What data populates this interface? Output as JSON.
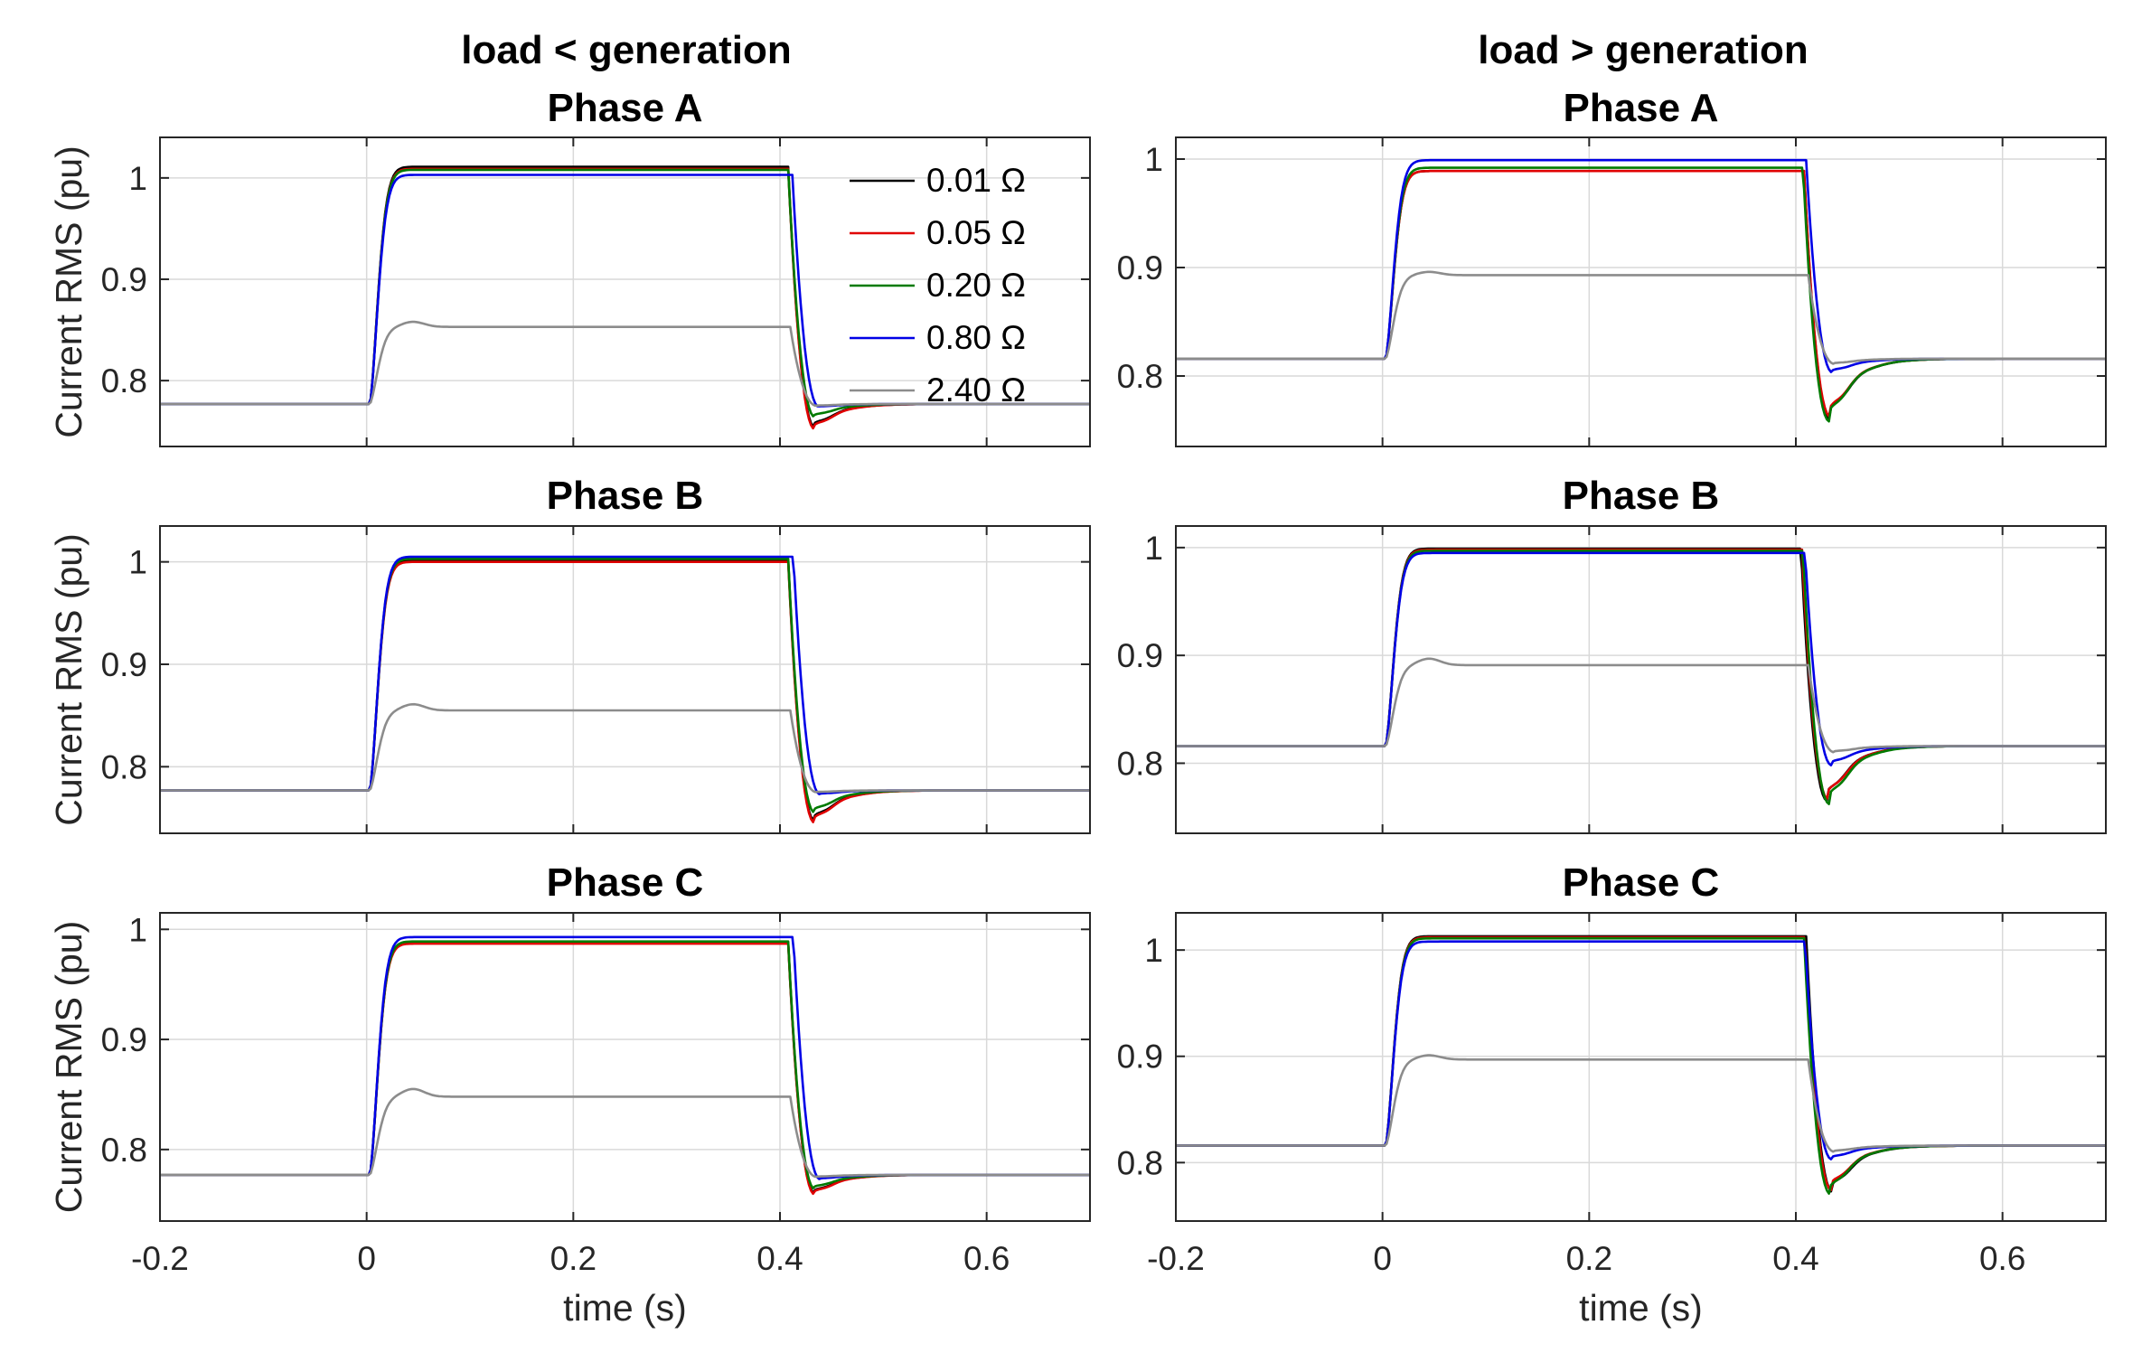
{
  "figure": {
    "columns": [
      {
        "title": "load < generation"
      },
      {
        "title": "load > generation"
      }
    ],
    "legend": [
      {
        "label": "0.01 Ω",
        "color": "#000000"
      },
      {
        "label": "0.05 Ω",
        "color": "#e00000"
      },
      {
        "label": "0.20 Ω",
        "color": "#007a00"
      },
      {
        "label": "0.80 Ω",
        "color": "#0000e6"
      },
      {
        "label": "2.40 Ω",
        "color": "#8c8c8c"
      }
    ]
  },
  "chart_data": [
    {
      "type": "line",
      "title": "Phase A",
      "column": "load < generation",
      "xlabel": "",
      "ylabel": "Current RMS (pu)",
      "xlim": [
        -0.2,
        0.7
      ],
      "ylim": [
        0.735,
        1.04
      ],
      "xticks": [
        -0.2,
        0,
        0.2,
        0.4,
        0.6
      ],
      "xtick_labels": [],
      "yticks": [
        0.8,
        0.9,
        1
      ],
      "ytick_labels": [
        "0.8",
        "0.9",
        "1"
      ],
      "grid": true,
      "legend_position": "top-right",
      "series": [
        {
          "name": "0.01 Ω",
          "pre": 0.777,
          "plateau": 1.011,
          "overshoot": 0.0,
          "dip": 0.754,
          "fault_end": 0.408
        },
        {
          "name": "0.05 Ω",
          "pre": 0.777,
          "plateau": 1.009,
          "overshoot": 0.0,
          "dip": 0.752,
          "fault_end": 0.408
        },
        {
          "name": "0.20 Ω",
          "pre": 0.777,
          "plateau": 1.008,
          "overshoot": 0.0,
          "dip": 0.764,
          "fault_end": 0.408
        },
        {
          "name": "0.80 Ω",
          "pre": 0.777,
          "plateau": 1.003,
          "overshoot": 0.0,
          "dip": 0.774,
          "fault_end": 0.412
        },
        {
          "name": "2.40 Ω",
          "pre": 0.777,
          "plateau": 0.853,
          "overshoot": 0.005,
          "dip": 0.775,
          "fault_end": 0.41
        }
      ]
    },
    {
      "type": "line",
      "title": "Phase A",
      "column": "load > generation",
      "xlabel": "",
      "ylabel": "",
      "xlim": [
        -0.2,
        0.7
      ],
      "ylim": [
        0.735,
        1.02
      ],
      "xticks": [
        -0.2,
        0,
        0.2,
        0.4,
        0.6
      ],
      "xtick_labels": [],
      "yticks": [
        0.8,
        0.9,
        1
      ],
      "ytick_labels": [
        "0.8",
        "0.9",
        "1"
      ],
      "grid": true,
      "series": [
        {
          "name": "0.01 Ω",
          "pre": 0.816,
          "plateau": 0.989,
          "overshoot": 0.0,
          "dip": 0.76,
          "fault_end": 0.408
        },
        {
          "name": "0.05 Ω",
          "pre": 0.816,
          "plateau": 0.989,
          "overshoot": 0.0,
          "dip": 0.762,
          "fault_end": 0.408
        },
        {
          "name": "0.20 Ω",
          "pre": 0.816,
          "plateau": 0.992,
          "overshoot": 0.0,
          "dip": 0.758,
          "fault_end": 0.407
        },
        {
          "name": "0.80 Ω",
          "pre": 0.816,
          "plateau": 0.999,
          "overshoot": 0.0,
          "dip": 0.803,
          "fault_end": 0.41
        },
        {
          "name": "2.40 Ω",
          "pre": 0.816,
          "plateau": 0.893,
          "overshoot": 0.003,
          "dip": 0.811,
          "fault_end": 0.412
        }
      ]
    },
    {
      "type": "line",
      "title": "Phase B",
      "column": "load < generation",
      "xlabel": "",
      "ylabel": "Current RMS (pu)",
      "xlim": [
        -0.2,
        0.7
      ],
      "ylim": [
        0.735,
        1.035
      ],
      "xticks": [
        -0.2,
        0,
        0.2,
        0.4,
        0.6
      ],
      "xtick_labels": [],
      "yticks": [
        0.8,
        0.9,
        1
      ],
      "ytick_labels": [
        "0.8",
        "0.9",
        "1"
      ],
      "grid": true,
      "series": [
        {
          "name": "0.01 Ω",
          "pre": 0.777,
          "plateau": 1.002,
          "overshoot": 0.0,
          "dip": 0.747,
          "fault_end": 0.408
        },
        {
          "name": "0.05 Ω",
          "pre": 0.777,
          "plateau": 1.0,
          "overshoot": 0.0,
          "dip": 0.745,
          "fault_end": 0.408
        },
        {
          "name": "0.20 Ω",
          "pre": 0.777,
          "plateau": 1.003,
          "overshoot": 0.0,
          "dip": 0.755,
          "fault_end": 0.408
        },
        {
          "name": "0.80 Ω",
          "pre": 0.777,
          "plateau": 1.005,
          "overshoot": 0.0,
          "dip": 0.773,
          "fault_end": 0.413
        },
        {
          "name": "2.40 Ω",
          "pre": 0.777,
          "plateau": 0.855,
          "overshoot": 0.006,
          "dip": 0.775,
          "fault_end": 0.41
        }
      ]
    },
    {
      "type": "line",
      "title": "Phase B",
      "column": "load > generation",
      "xlabel": "",
      "ylabel": "",
      "xlim": [
        -0.2,
        0.7
      ],
      "ylim": [
        0.735,
        1.02
      ],
      "xticks": [
        -0.2,
        0,
        0.2,
        0.4,
        0.6
      ],
      "xtick_labels": [],
      "yticks": [
        0.8,
        0.9,
        1
      ],
      "ytick_labels": [
        "0.8",
        "0.9",
        "1"
      ],
      "grid": true,
      "series": [
        {
          "name": "0.01 Ω",
          "pre": 0.816,
          "plateau": 0.999,
          "overshoot": 0.0,
          "dip": 0.765,
          "fault_end": 0.405
        },
        {
          "name": "0.05 Ω",
          "pre": 0.816,
          "plateau": 0.998,
          "overshoot": 0.0,
          "dip": 0.766,
          "fault_end": 0.406
        },
        {
          "name": "0.20 Ω",
          "pre": 0.816,
          "plateau": 0.997,
          "overshoot": 0.0,
          "dip": 0.762,
          "fault_end": 0.407
        },
        {
          "name": "0.80 Ω",
          "pre": 0.816,
          "plateau": 0.995,
          "overshoot": 0.0,
          "dip": 0.798,
          "fault_end": 0.409
        },
        {
          "name": "2.40 Ω",
          "pre": 0.816,
          "plateau": 0.891,
          "overshoot": 0.006,
          "dip": 0.81,
          "fault_end": 0.412
        }
      ]
    },
    {
      "type": "line",
      "title": "Phase C",
      "column": "load < generation",
      "xlabel": "time (s)",
      "ylabel": "Current RMS (pu)",
      "xlim": [
        -0.2,
        0.7
      ],
      "ylim": [
        0.735,
        1.015
      ],
      "xticks": [
        -0.2,
        0,
        0.2,
        0.4,
        0.6
      ],
      "xtick_labels": [
        "-0.2",
        "0",
        "0.2",
        "0.4",
        "0.6"
      ],
      "yticks": [
        0.8,
        0.9,
        1
      ],
      "ytick_labels": [
        "0.8",
        "0.9",
        "1"
      ],
      "grid": true,
      "series": [
        {
          "name": "0.01 Ω",
          "pre": 0.777,
          "plateau": 0.988,
          "overshoot": 0.0,
          "dip": 0.76,
          "fault_end": 0.408
        },
        {
          "name": "0.05 Ω",
          "pre": 0.777,
          "plateau": 0.987,
          "overshoot": 0.0,
          "dip": 0.759,
          "fault_end": 0.408
        },
        {
          "name": "0.20 Ω",
          "pre": 0.777,
          "plateau": 0.989,
          "overshoot": 0.0,
          "dip": 0.764,
          "fault_end": 0.408
        },
        {
          "name": "0.80 Ω",
          "pre": 0.777,
          "plateau": 0.993,
          "overshoot": 0.0,
          "dip": 0.773,
          "fault_end": 0.413
        },
        {
          "name": "2.40 Ω",
          "pre": 0.777,
          "plateau": 0.848,
          "overshoot": 0.007,
          "dip": 0.775,
          "fault_end": 0.41
        }
      ]
    },
    {
      "type": "line",
      "title": "Phase C",
      "column": "load > generation",
      "xlabel": "time (s)",
      "ylabel": "",
      "xlim": [
        -0.2,
        0.7
      ],
      "ylim": [
        0.745,
        1.035
      ],
      "xticks": [
        -0.2,
        0,
        0.2,
        0.4,
        0.6
      ],
      "xtick_labels": [
        "-0.2",
        "0",
        "0.2",
        "0.4",
        "0.6"
      ],
      "yticks": [
        0.8,
        0.9,
        1
      ],
      "ytick_labels": [
        "0.8",
        "0.9",
        "1"
      ],
      "grid": true,
      "series": [
        {
          "name": "0.01 Ω",
          "pre": 0.816,
          "plateau": 1.013,
          "overshoot": 0.0,
          "dip": 0.772,
          "fault_end": 0.41
        },
        {
          "name": "0.05 Ω",
          "pre": 0.816,
          "plateau": 1.012,
          "overshoot": 0.0,
          "dip": 0.774,
          "fault_end": 0.409
        },
        {
          "name": "0.20 Ω",
          "pre": 0.816,
          "plateau": 1.011,
          "overshoot": 0.0,
          "dip": 0.77,
          "fault_end": 0.408
        },
        {
          "name": "0.80 Ω",
          "pre": 0.816,
          "plateau": 1.008,
          "overshoot": 0.0,
          "dip": 0.803,
          "fault_end": 0.409
        },
        {
          "name": "2.40 Ω",
          "pre": 0.816,
          "plateau": 0.897,
          "overshoot": 0.004,
          "dip": 0.81,
          "fault_end": 0.412
        }
      ]
    }
  ]
}
